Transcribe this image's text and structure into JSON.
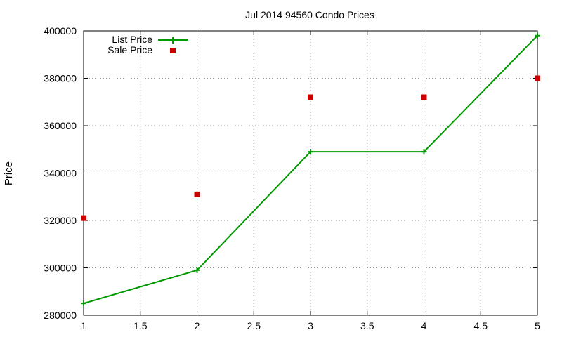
{
  "chart_data": {
    "type": "line",
    "title": "Jul 2014 94560 Condo Prices",
    "xlabel": "",
    "ylabel": "Price",
    "xlim": [
      1,
      5
    ],
    "ylim": [
      280000,
      400000
    ],
    "x_ticks": [
      "1",
      "1.5",
      "2",
      "2.5",
      "3",
      "3.5",
      "4",
      "4.5",
      "5"
    ],
    "y_ticks": [
      "280000",
      "300000",
      "320000",
      "340000",
      "360000",
      "380000",
      "400000"
    ],
    "grid": true,
    "legend_position": "top-left",
    "series": [
      {
        "name": "List Price",
        "style": "line-with-plus-markers",
        "color": "#009900",
        "x": [
          1,
          2,
          3,
          4,
          5
        ],
        "values": [
          285000,
          299000,
          349000,
          349000,
          398000
        ]
      },
      {
        "name": "Sale Price",
        "style": "square-markers",
        "color": "#cc0000",
        "x": [
          1,
          2,
          3,
          4,
          5
        ],
        "values": [
          321000,
          331000,
          372000,
          372000,
          380000
        ]
      }
    ]
  }
}
